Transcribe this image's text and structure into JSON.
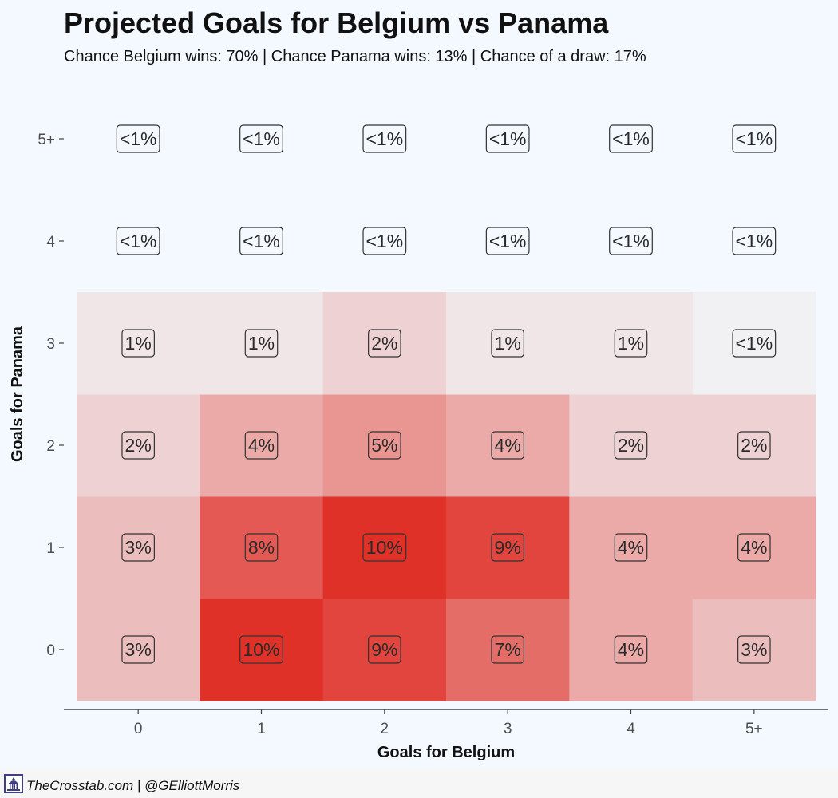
{
  "chart_data": {
    "type": "heatmap",
    "title": "Projected Goals for Belgium vs Panama",
    "subtitle": "Chance Belgium wins: 70% | Chance Panama wins: 13% | Chance of a draw: 17%",
    "xlabel": "Goals for Belgium",
    "ylabel": "Goals for Panama",
    "x_categories": [
      "0",
      "1",
      "2",
      "3",
      "4",
      "5+"
    ],
    "y_categories": [
      "0",
      "1",
      "2",
      "3",
      "4",
      "5+"
    ],
    "values": [
      [
        3,
        10,
        9,
        7,
        4,
        3
      ],
      [
        3,
        8,
        10,
        9,
        4,
        4
      ],
      [
        2,
        4,
        5,
        4,
        2,
        2
      ],
      [
        1,
        1,
        2,
        1,
        1,
        0.4
      ],
      [
        0.1,
        0.1,
        0.1,
        0.1,
        0.1,
        0.1
      ],
      [
        0.1,
        0.1,
        0.1,
        0.1,
        0.1,
        0.1
      ]
    ],
    "cell_labels": [
      [
        "3%",
        "10%",
        "9%",
        "7%",
        "4%",
        "3%"
      ],
      [
        "3%",
        "8%",
        "10%",
        "9%",
        "4%",
        "4%"
      ],
      [
        "2%",
        "4%",
        "5%",
        "4%",
        "2%",
        "2%"
      ],
      [
        "1%",
        "1%",
        "2%",
        "1%",
        "1%",
        "<1%"
      ],
      [
        "<1%",
        "<1%",
        "<1%",
        "<1%",
        "<1%",
        "<1%"
      ],
      [
        "<1%",
        "<1%",
        "<1%",
        "<1%",
        "<1%",
        "<1%"
      ]
    ],
    "color_scale": {
      "low": "#f1f1f4",
      "high": "#e03128",
      "min": 0.4,
      "max": 10
    },
    "grid": false,
    "legend": "none"
  },
  "footer": {
    "credit": "TheCrosstab.com | @GElliottMorris",
    "logo_icon": "capitol-building-icon"
  },
  "colors": {
    "background": "#f3f9ff",
    "footer_background": "#f6f6f6",
    "text": "#111111",
    "axis_text": "#4d4d4d",
    "label_border": "#333333",
    "logo": "#3c3f80"
  }
}
